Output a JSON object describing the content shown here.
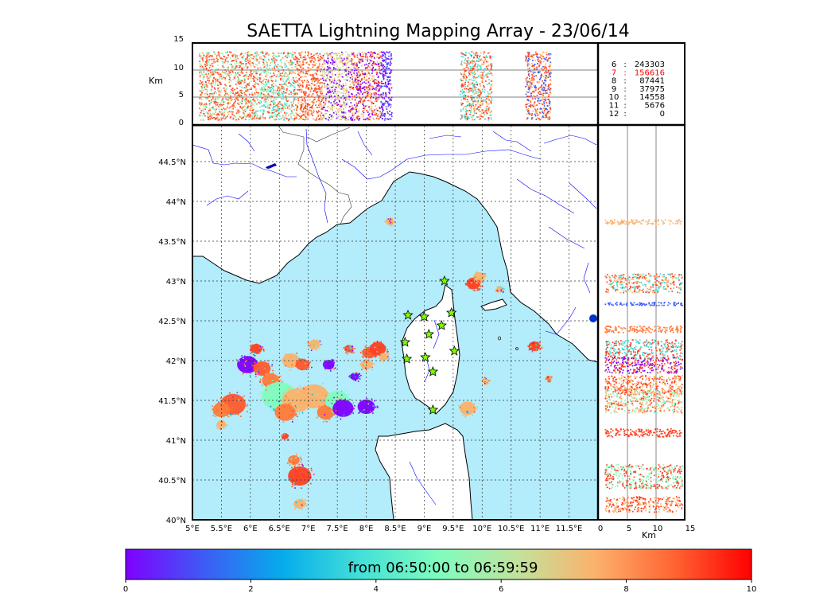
{
  "title": "SAETTA Lightning Mapping Array - 23/06/14",
  "height_axis": {
    "label": "Km",
    "ticks": [
      "0",
      "5",
      "10",
      "15"
    ]
  },
  "lat_ticks": [
    "40°N",
    "40.5°N",
    "41°N",
    "41.5°N",
    "42°N",
    "42.5°N",
    "43°N",
    "43.5°N",
    "44°N",
    "44.5°N"
  ],
  "lon_ticks": [
    "5°E",
    "5.5°E",
    "6°E",
    "6.5°E",
    "7°E",
    "7.5°E",
    "8°E",
    "8.5°E",
    "9°E",
    "9.5°E",
    "10°E",
    "10.5°E",
    "11°E",
    "11.5°E"
  ],
  "counts": [
    {
      "level": "6",
      "count": "243303",
      "color": "#000000"
    },
    {
      "level": "7",
      "count": "156616",
      "color": "#ff0000"
    },
    {
      "level": "8",
      "count": "87441",
      "color": "#000000"
    },
    {
      "level": "9",
      "count": "37975",
      "color": "#000000"
    },
    {
      "level": "10",
      "count": "14558",
      "color": "#000000"
    },
    {
      "level": "11",
      "count": "5676",
      "color": "#000000"
    },
    {
      "level": "12",
      "count": "0",
      "color": "#000000"
    }
  ],
  "colorbar": {
    "label": "from 06:50:00 to 06:59:59",
    "ticks": [
      "0",
      "2",
      "4",
      "6",
      "8",
      "10"
    ],
    "colors": [
      "#7f00ff",
      "#3e5bf5",
      "#05aceb",
      "#43e0d8",
      "#7ffdbe",
      "#c1e39d",
      "#fbb26c",
      "#ff6533",
      "#ff0000"
    ]
  },
  "colors": {
    "sea": "#b3ecfb",
    "land": "#ffffff",
    "rivers": "#0000ff",
    "station": "#7cfc00",
    "coast": "#000000"
  },
  "stations": [
    {
      "lon": 9.35,
      "lat": 43.0
    },
    {
      "lon": 8.72,
      "lat": 42.57
    },
    {
      "lon": 9.0,
      "lat": 42.55
    },
    {
      "lon": 9.47,
      "lat": 42.6
    },
    {
      "lon": 9.3,
      "lat": 42.44
    },
    {
      "lon": 9.08,
      "lat": 42.33
    },
    {
      "lon": 8.67,
      "lat": 42.23
    },
    {
      "lon": 9.52,
      "lat": 42.12
    },
    {
      "lon": 8.7,
      "lat": 42.02
    },
    {
      "lon": 9.02,
      "lat": 42.04
    },
    {
      "lon": 9.15,
      "lat": 41.86
    },
    {
      "lon": 9.15,
      "lat": 41.38
    }
  ],
  "clusters": [
    {
      "lon": 5.7,
      "lat": 41.45,
      "r": 0.22,
      "c": "#ff5a2e"
    },
    {
      "lon": 5.5,
      "lat": 41.38,
      "r": 0.15,
      "c": "#ff7a3a"
    },
    {
      "lon": 5.95,
      "lat": 41.95,
      "r": 0.18,
      "c": "#7f00ff"
    },
    {
      "lon": 6.2,
      "lat": 41.9,
      "r": 0.15,
      "c": "#ff5a2e"
    },
    {
      "lon": 6.1,
      "lat": 42.15,
      "r": 0.1,
      "c": "#ff4020"
    },
    {
      "lon": 6.35,
      "lat": 41.75,
      "r": 0.15,
      "c": "#ff7a3a"
    },
    {
      "lon": 6.5,
      "lat": 41.55,
      "r": 0.3,
      "c": "#7ffdbe"
    },
    {
      "lon": 6.8,
      "lat": 41.5,
      "r": 0.25,
      "c": "#fbb26c"
    },
    {
      "lon": 7.1,
      "lat": 41.55,
      "r": 0.25,
      "c": "#fbb26c"
    },
    {
      "lon": 6.6,
      "lat": 41.35,
      "r": 0.18,
      "c": "#ff7a3a"
    },
    {
      "lon": 7.3,
      "lat": 41.35,
      "r": 0.15,
      "c": "#ff7a3a"
    },
    {
      "lon": 7.5,
      "lat": 41.5,
      "r": 0.2,
      "c": "#7ffdbe"
    },
    {
      "lon": 7.6,
      "lat": 41.4,
      "r": 0.18,
      "c": "#7f00ff"
    },
    {
      "lon": 8.0,
      "lat": 41.42,
      "r": 0.15,
      "c": "#7f00ff"
    },
    {
      "lon": 6.7,
      "lat": 42.0,
      "r": 0.15,
      "c": "#fbb26c"
    },
    {
      "lon": 6.9,
      "lat": 41.95,
      "r": 0.12,
      "c": "#ff5a2e"
    },
    {
      "lon": 7.1,
      "lat": 42.2,
      "r": 0.1,
      "c": "#fbb26c"
    },
    {
      "lon": 7.35,
      "lat": 41.95,
      "r": 0.1,
      "c": "#7f00ff"
    },
    {
      "lon": 7.7,
      "lat": 42.15,
      "r": 0.08,
      "c": "#ff5a2e"
    },
    {
      "lon": 8.05,
      "lat": 42.1,
      "r": 0.12,
      "c": "#ff5a2e"
    },
    {
      "lon": 8.2,
      "lat": 42.15,
      "r": 0.14,
      "c": "#ff4020"
    },
    {
      "lon": 8.0,
      "lat": 41.95,
      "r": 0.1,
      "c": "#fbb26c"
    },
    {
      "lon": 7.8,
      "lat": 41.8,
      "r": 0.08,
      "c": "#7f00ff"
    },
    {
      "lon": 8.3,
      "lat": 42.05,
      "r": 0.08,
      "c": "#fbb26c"
    },
    {
      "lon": 6.85,
      "lat": 40.55,
      "r": 0.2,
      "c": "#ff4020"
    },
    {
      "lon": 6.75,
      "lat": 40.75,
      "r": 0.1,
      "c": "#ff7a3a"
    },
    {
      "lon": 6.85,
      "lat": 40.2,
      "r": 0.1,
      "c": "#fbb26c"
    },
    {
      "lon": 6.6,
      "lat": 41.05,
      "r": 0.06,
      "c": "#ff4020"
    },
    {
      "lon": 5.5,
      "lat": 41.2,
      "r": 0.08,
      "c": "#fbb26c"
    },
    {
      "lon": 8.4,
      "lat": 43.75,
      "r": 0.07,
      "c": "#fbb26c"
    },
    {
      "lon": 9.85,
      "lat": 42.97,
      "r": 0.12,
      "c": "#ff4020"
    },
    {
      "lon": 9.95,
      "lat": 43.05,
      "r": 0.1,
      "c": "#fbb26c"
    },
    {
      "lon": 9.75,
      "lat": 41.4,
      "r": 0.14,
      "c": "#fbb26c"
    },
    {
      "lon": 10.05,
      "lat": 41.75,
      "r": 0.06,
      "c": "#fbb26c"
    },
    {
      "lon": 10.9,
      "lat": 42.18,
      "r": 0.1,
      "c": "#ff4020"
    },
    {
      "lon": 11.15,
      "lat": 41.78,
      "r": 0.05,
      "c": "#ff7a3a"
    },
    {
      "lon": 10.3,
      "lat": 42.9,
      "r": 0.06,
      "c": "#fbb26c"
    }
  ]
}
